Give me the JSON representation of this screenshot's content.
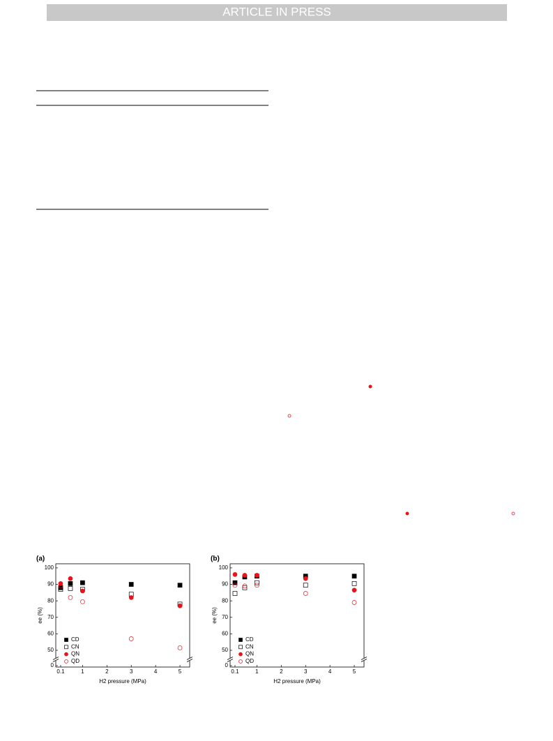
{
  "header": {
    "title": "ARTICLE IN PRESS"
  },
  "chart_data": [
    {
      "type": "scatter",
      "panel": "(a)",
      "x_label": "H2 pressure (MPa)",
      "y_label": "ee (%)",
      "xlim": [
        -0.1,
        5.4
      ],
      "xticks": [
        0.1,
        1,
        2,
        3,
        4,
        5
      ],
      "ylim": [
        0,
        102.5
      ],
      "yticks": [
        0,
        50,
        60,
        70,
        80,
        90,
        100
      ],
      "ybreak": [
        0,
        50
      ],
      "legend": "lower left",
      "x": [
        0.1,
        0.5,
        1,
        3,
        5
      ],
      "series": [
        {
          "name": "CD",
          "color": "#000000",
          "marker": "square",
          "filled": true,
          "values": [
            88,
            90.5,
            91,
            90,
            89.5
          ]
        },
        {
          "name": "CN",
          "color": "#000000",
          "marker": "square",
          "filled": false,
          "values": [
            87,
            87.5,
            87,
            84,
            78
          ]
        },
        {
          "name": "QN",
          "color": "#e8141c",
          "marker": "circle",
          "filled": true,
          "values": [
            90.5,
            93.5,
            86,
            82,
            77
          ]
        },
        {
          "name": "QD",
          "color": "#e8141c",
          "marker": "circle",
          "filled": false,
          "values": [
            89,
            82,
            79.5,
            57,
            51.5
          ]
        }
      ]
    },
    {
      "type": "scatter",
      "panel": "(b)",
      "x_label": "H2 pressure (MPa)",
      "y_label": "ee (%)",
      "xlim": [
        -0.1,
        5.4
      ],
      "xticks": [
        0.1,
        1,
        2,
        3,
        4,
        5
      ],
      "ylim": [
        0,
        102.5
      ],
      "yticks": [
        0,
        50,
        60,
        70,
        80,
        90,
        100
      ],
      "ybreak": [
        0,
        50
      ],
      "legend": "lower left",
      "x": [
        0.1,
        0.5,
        1,
        3,
        5
      ],
      "series": [
        {
          "name": "CD",
          "color": "#000000",
          "marker": "square",
          "filled": true,
          "values": [
            91,
            94.5,
            95,
            95,
            95
          ]
        },
        {
          "name": "CN",
          "color": "#000000",
          "marker": "square",
          "filled": false,
          "values": [
            84.5,
            88,
            91,
            89.5,
            90.5
          ]
        },
        {
          "name": "QN",
          "color": "#e8141c",
          "marker": "circle",
          "filled": true,
          "values": [
            96,
            95.5,
            95.5,
            93.5,
            86.5
          ]
        },
        {
          "name": "QD",
          "color": "#e8141c",
          "marker": "circle",
          "filled": false,
          "values": [
            89.5,
            89,
            89.5,
            84.5,
            79
          ]
        }
      ]
    }
  ]
}
